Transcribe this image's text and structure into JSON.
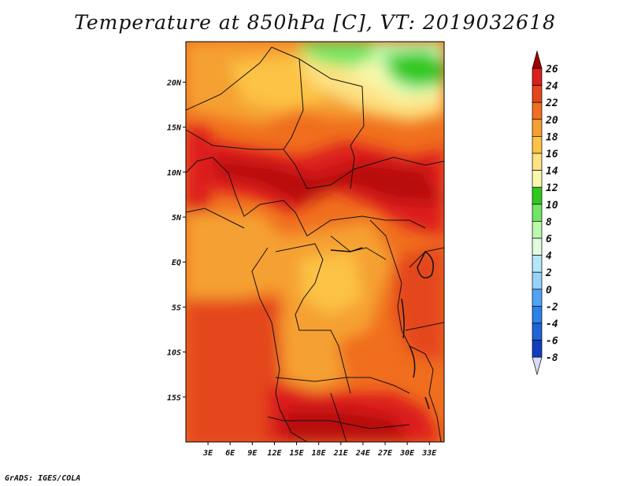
{
  "title": "Temperature at 850hPa [C], VT: 2019032618",
  "credit": "GrADS: IGES/COLA",
  "map": {
    "lon_range": [
      0,
      35
    ],
    "lat_range": [
      -20,
      24.5
    ],
    "x_ticks": [
      "3E",
      "6E",
      "9E",
      "12E",
      "15E",
      "18E",
      "21E",
      "24E",
      "27E",
      "30E",
      "33E"
    ],
    "y_ticks": [
      "20N",
      "15N",
      "10N",
      "5N",
      "EQ",
      "5S",
      "10S",
      "15S"
    ]
  },
  "colorbar": {
    "labels": [
      "26",
      "24",
      "22",
      "20",
      "18",
      "16",
      "14",
      "12",
      "10",
      "8",
      "6",
      "4",
      "2",
      "0",
      "-2",
      "-4",
      "-6",
      "-8"
    ],
    "colors": [
      "#a00000",
      "#dc1e1e",
      "#e4461e",
      "#f06e1e",
      "#f5a032",
      "#fcc344",
      "#fde282",
      "#f8f7ab",
      "#30c81e",
      "#72e664",
      "#bbf9ac",
      "#e2fae0",
      "#b4e6fa",
      "#96d2fa",
      "#50a4f4",
      "#2a82e8",
      "#1e64d4",
      "#143cbe",
      "#0a1a98"
    ],
    "top_color": "#a00000",
    "bottom_color": "#d8dcf8"
  }
}
